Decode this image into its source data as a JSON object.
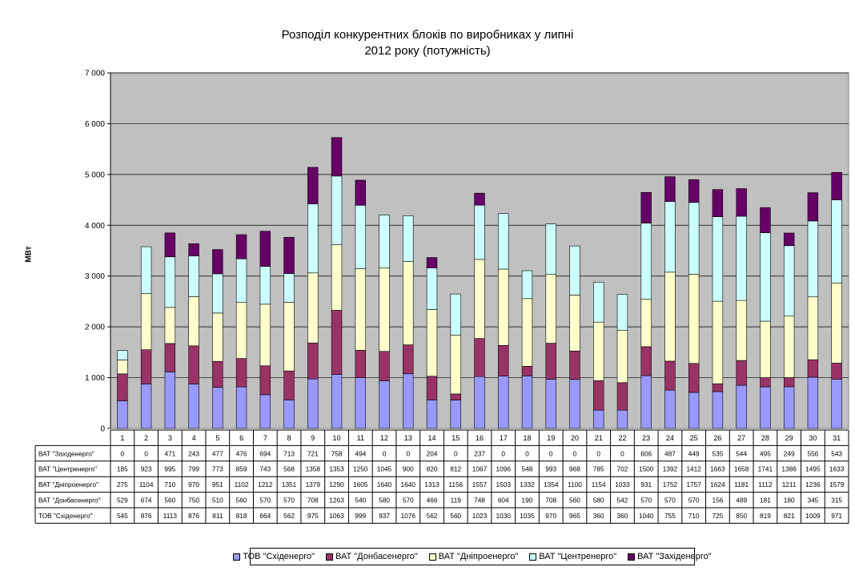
{
  "chart_data": {
    "type": "bar",
    "stacked": true,
    "title": [
      "Розподіл конкурентних блоків по виробниках у липні",
      "2012 року (потужність)"
    ],
    "xlabel": "",
    "ylabel": "МВт",
    "ylim": [
      0,
      7000
    ],
    "yticks": [
      "0",
      "1 000",
      "2 000",
      "3 000",
      "4 000",
      "5 000",
      "6 000",
      "7 000"
    ],
    "grid": "horizontal",
    "legend_position": "bottom",
    "categories": [
      "1",
      "2",
      "3",
      "4",
      "5",
      "6",
      "7",
      "8",
      "9",
      "10",
      "11",
      "12",
      "13",
      "14",
      "15",
      "16",
      "17",
      "18",
      "19",
      "20",
      "21",
      "22",
      "23",
      "24",
      "25",
      "26",
      "27",
      "28",
      "29",
      "30",
      "31"
    ],
    "series": [
      {
        "name": "ТОВ \"Східенерго\"",
        "color": "#9999ff",
        "values": [
          545,
          876,
          1113,
          876,
          811,
          818,
          664,
          562,
          975,
          1063,
          999,
          937,
          1076,
          562,
          560,
          1023,
          1030,
          1035,
          970,
          965,
          360,
          360,
          1040,
          755,
          710,
          725,
          850,
          819,
          821,
          1009,
          971
        ]
      },
      {
        "name": "ВАТ \"Донбасенерго\"",
        "color": "#993366",
        "values": [
          529,
          674,
          560,
          750,
          510,
          560,
          570,
          570,
          708,
          1263,
          540,
          580,
          570,
          466,
          119,
          748,
          604,
          190,
          708,
          560,
          580,
          542,
          570,
          570,
          570,
          156,
          489,
          181,
          180,
          345,
          315
        ]
      },
      {
        "name": "ВАТ \"Дніпроенерго\"",
        "color": "#ffffcc",
        "values": [
          275,
          1104,
          710,
          970,
          951,
          1102,
          1212,
          1351,
          1379,
          1290,
          1605,
          1640,
          1640,
          1313,
          1156,
          1557,
          1503,
          1332,
          1354,
          1100,
          1154,
          1033,
          931,
          1752,
          1757,
          1624,
          1181,
          1112,
          1211,
          1236,
          1579
        ]
      },
      {
        "name": "ВАТ \"Центренерго\"",
        "color": "#ccffff",
        "values": [
          185,
          923,
          995,
          799,
          773,
          859,
          743,
          568,
          1358,
          1353,
          1250,
          1045,
          900,
          820,
          812,
          1067,
          1096,
          548,
          993,
          968,
          785,
          702,
          1500,
          1392,
          1412,
          1663,
          1658,
          1741,
          1386,
          1495,
          1633
        ]
      },
      {
        "name": "ВАТ \"Західенерго\"",
        "color": "#660066",
        "values": [
          0,
          0,
          471,
          243,
          477,
          476,
          694,
          713,
          721,
          758,
          494,
          0,
          0,
          204,
          0,
          237,
          0,
          0,
          0,
          0,
          0,
          0,
          606,
          487,
          449,
          535,
          544,
          495,
          249,
          556,
          543
        ]
      }
    ],
    "table_rows": [
      {
        "label": "ВАТ \"Західенерго\"",
        "series_index": 4
      },
      {
        "label": "ВАТ \"Центренерго\"",
        "series_index": 3
      },
      {
        "label": "ВАТ \"Дніпроенерго\"",
        "series_index": 2
      },
      {
        "label": "ВАТ \"Донбасенерго\"",
        "series_index": 1
      },
      {
        "label": "ТОВ \"Східенерго\"",
        "series_index": 0
      }
    ],
    "plot_background": "#c0c0c0"
  }
}
